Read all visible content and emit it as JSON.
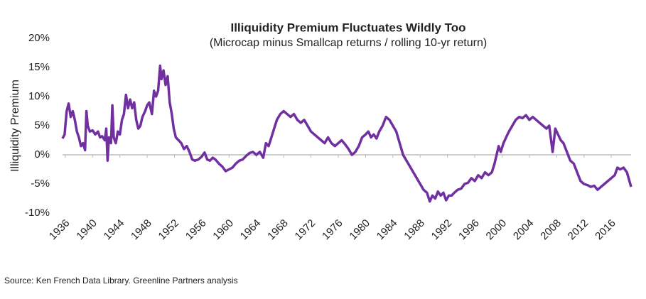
{
  "chart_data": {
    "type": "line",
    "title": "Illiquidity Premium Fluctuates Wildly Too",
    "subtitle": "(Microcap minus Smallcap returns  / rolling 10-yr return)",
    "y_label": "Illiquidity Premium",
    "source": "Source: Ken French Data Library. Greenline Partners analysis",
    "color": "#7030a0",
    "x": [
      1935.6,
      1935.9,
      1936.2,
      1936.5,
      1936.8,
      1937.1,
      1937.4,
      1937.7,
      1938.0,
      1938.3,
      1938.6,
      1938.9,
      1939.1,
      1939.3,
      1939.6,
      1940.0,
      1940.4,
      1940.8,
      1941.1,
      1941.4,
      1941.8,
      1942.0,
      1942.2,
      1942.4,
      1942.7,
      1942.9,
      1943.1,
      1943.4,
      1943.7,
      1944.0,
      1944.3,
      1944.6,
      1944.9,
      1945.2,
      1945.5,
      1945.8,
      1946.1,
      1946.4,
      1946.7,
      1947.0,
      1947.3,
      1947.7,
      1948.0,
      1948.3,
      1948.7,
      1949.0,
      1949.3,
      1949.6,
      1949.9,
      1950.1,
      1950.4,
      1950.7,
      1951.0,
      1951.3,
      1951.6,
      1951.9,
      1952.2,
      1952.6,
      1953.0,
      1953.4,
      1953.8,
      1954.2,
      1954.6,
      1955.0,
      1955.5,
      1956.0,
      1956.4,
      1956.8,
      1957.2,
      1957.6,
      1958.0,
      1958.5,
      1959.0,
      1959.5,
      1960.0,
      1960.5,
      1961.0,
      1961.5,
      1962.0,
      1962.5,
      1963.0,
      1963.5,
      1964.0,
      1964.5,
      1965.0,
      1965.4,
      1965.8,
      1966.2,
      1966.6,
      1967.0,
      1967.5,
      1968.0,
      1968.5,
      1969.0,
      1969.5,
      1970.0,
      1970.5,
      1971.0,
      1971.5,
      1972.0,
      1972.5,
      1973.0,
      1973.5,
      1974.0,
      1974.5,
      1975.0,
      1975.5,
      1976.0,
      1976.5,
      1977.0,
      1977.5,
      1978.0,
      1978.5,
      1979.0,
      1979.5,
      1980.0,
      1980.4,
      1980.8,
      1981.2,
      1981.6,
      1982.0,
      1982.5,
      1983.0,
      1983.5,
      1984.0,
      1984.5,
      1985.0,
      1985.5,
      1986.0,
      1986.5,
      1987.0,
      1987.5,
      1988.0,
      1988.5,
      1989.0,
      1989.4,
      1989.8,
      1990.2,
      1990.6,
      1991.0,
      1991.4,
      1991.8,
      1992.2,
      1992.6,
      1993.0,
      1993.5,
      1994.0,
      1994.5,
      1995.0,
      1995.5,
      1996.0,
      1996.5,
      1997.0,
      1997.5,
      1998.0,
      1998.5,
      1998.9,
      1999.2,
      1999.5,
      1999.8,
      2000.2,
      2000.6,
      2001.0,
      2001.5,
      2002.0,
      2002.5,
      2003.0,
      2003.5,
      2004.0,
      2004.5,
      2005.0,
      2005.5,
      2006.0,
      2006.5,
      2006.9,
      2007.4,
      2007.8,
      2008.2,
      2008.6,
      2009.0,
      2009.5,
      2010.0,
      2010.5,
      2011.0,
      2011.5,
      2012.0,
      2012.5,
      2013.0,
      2013.5,
      2014.0,
      2014.5,
      2015.0,
      2015.5,
      2016.0,
      2016.5,
      2016.9,
      2017.3,
      2017.8,
      2018.3,
      2018.9
    ],
    "values": [
      2.8,
      3.5,
      7.5,
      8.8,
      6.5,
      7.5,
      6,
      4,
      3,
      1.5,
      2,
      0.8,
      7.5,
      5,
      4,
      4.2,
      3.5,
      4,
      3,
      3.2,
      2.5,
      4.5,
      -1,
      3,
      2,
      8.5,
      3,
      2,
      4,
      3.5,
      6,
      7,
      10.3,
      8,
      9.5,
      8,
      9,
      6,
      4.5,
      5,
      6.5,
      7.5,
      8.5,
      9,
      7,
      11,
      10,
      11,
      15.3,
      13,
      14.5,
      12,
      13.5,
      9,
      7,
      4.5,
      3,
      2.5,
      2,
      1,
      1.5,
      0.5,
      -0.8,
      -1,
      -0.8,
      -0.3,
      0.4,
      -0.8,
      -1,
      -0.5,
      -0.8,
      -1.5,
      -2,
      -2.8,
      -2.5,
      -2.2,
      -1.5,
      -1,
      -0.8,
      -0.2,
      0.3,
      0.5,
      0,
      0.5,
      -0.5,
      2,
      1.5,
      3,
      4.5,
      6,
      7,
      7.5,
      7,
      6.5,
      7,
      6,
      5.5,
      6,
      5,
      4,
      3.5,
      3,
      2.5,
      2,
      3,
      2,
      1.5,
      2,
      2.5,
      1.8,
      1,
      0,
      0.5,
      1.5,
      3,
      3.5,
      4,
      3,
      3.5,
      2.8,
      4,
      5,
      6.5,
      6,
      5,
      4,
      2,
      0,
      -1,
      -2,
      -3,
      -4,
      -5,
      -6,
      -6.5,
      -8,
      -7,
      -7.5,
      -6.3,
      -7,
      -6.5,
      -7.8,
      -7,
      -7,
      -6.5,
      -6,
      -5.8,
      -5,
      -4.8,
      -4,
      -4.5,
      -3.5,
      -4,
      -3,
      -3.5,
      -3,
      -1.5,
      0,
      1.5,
      0.5,
      2,
      3,
      4,
      5,
      6,
      6.5,
      6.3,
      6.8,
      6,
      6.5,
      6,
      5.5,
      5,
      4.5,
      5,
      0.5,
      4.5,
      3.5,
      2.5,
      2,
      0.5,
      -1,
      -1.5,
      -3,
      -4.5,
      -5,
      -5.2,
      -5.5,
      -5.3,
      -6,
      -5.5,
      -5,
      -4.5,
      -4,
      -3.5,
      -2.2,
      -2.5,
      -2.2,
      -3,
      -5.5
    ],
    "xlim": [
      1935.6,
      2018.9
    ],
    "xticks": [
      1936,
      1940,
      1944,
      1948,
      1952,
      1956,
      1960,
      1964,
      1968,
      1972,
      1976,
      1980,
      1984,
      1988,
      1992,
      1996,
      2000,
      2004,
      2008,
      2012,
      2016
    ],
    "ylim": [
      -10,
      20
    ],
    "yticks": [
      {
        "value": 20,
        "label": "20%"
      },
      {
        "value": 15,
        "label": "15%"
      },
      {
        "value": 10,
        "label": "10%"
      },
      {
        "value": 5,
        "label": "5%"
      },
      {
        "value": 0,
        "label": "0%"
      },
      {
        "value": -5,
        "label": "-5%"
      },
      {
        "value": -10,
        "label": "-10%"
      }
    ]
  }
}
